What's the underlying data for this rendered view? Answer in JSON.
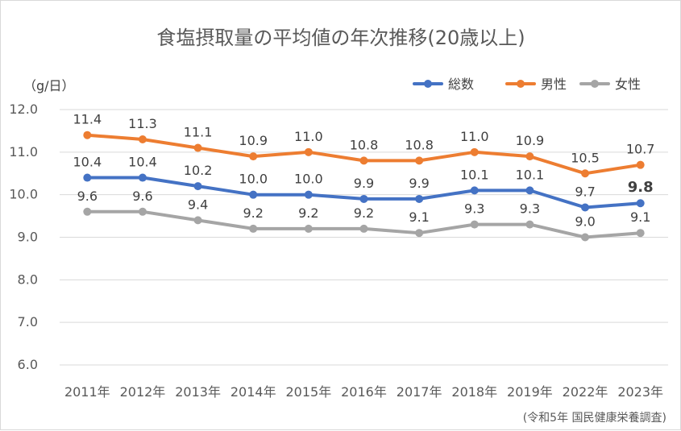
{
  "chart_data": {
    "type": "line",
    "title": "食塩摂取量の平均値の年次推移(20歳以上)",
    "ylabel": "（g/日）",
    "source": "(令和5年 国民健康栄養調査)",
    "ylim": [
      6.0,
      12.0
    ],
    "yticks": [
      "6.0",
      "7.0",
      "8.0",
      "9.0",
      "10.0",
      "11.0",
      "12.0"
    ],
    "grid": true,
    "legend_position": "top-right",
    "categories": [
      "2011年",
      "2012年",
      "2013年",
      "2014年",
      "2015年",
      "2016年",
      "2017年",
      "2018年",
      "2019年",
      "2022年",
      "2023年"
    ],
    "series": [
      {
        "name": "総数",
        "color": "#4472c4",
        "values": [
          10.4,
          10.4,
          10.2,
          10.0,
          10.0,
          9.9,
          9.9,
          10.1,
          10.1,
          9.7,
          9.8
        ],
        "labels": [
          "10.4",
          "10.4",
          "10.2",
          "10.0",
          "10.0",
          "9.9",
          "9.9",
          "10.1",
          "10.1",
          "9.7",
          "9.8"
        ],
        "bold_last": true
      },
      {
        "name": "男性",
        "color": "#ed7d31",
        "values": [
          11.4,
          11.3,
          11.1,
          10.9,
          11.0,
          10.8,
          10.8,
          11.0,
          10.9,
          10.5,
          10.7
        ],
        "labels": [
          "11.4",
          "11.3",
          "11.1",
          "10.9",
          "11.0",
          "10.8",
          "10.8",
          "11.0",
          "10.9",
          "10.5",
          "10.7"
        ]
      },
      {
        "name": "女性",
        "color": "#a5a5a5",
        "values": [
          9.6,
          9.6,
          9.4,
          9.2,
          9.2,
          9.2,
          9.1,
          9.3,
          9.3,
          9.0,
          9.1
        ],
        "labels": [
          "9.6",
          "9.6",
          "9.4",
          "9.2",
          "9.2",
          "9.2",
          "9.1",
          "9.3",
          "9.3",
          "9.0",
          "9.1"
        ]
      }
    ]
  }
}
